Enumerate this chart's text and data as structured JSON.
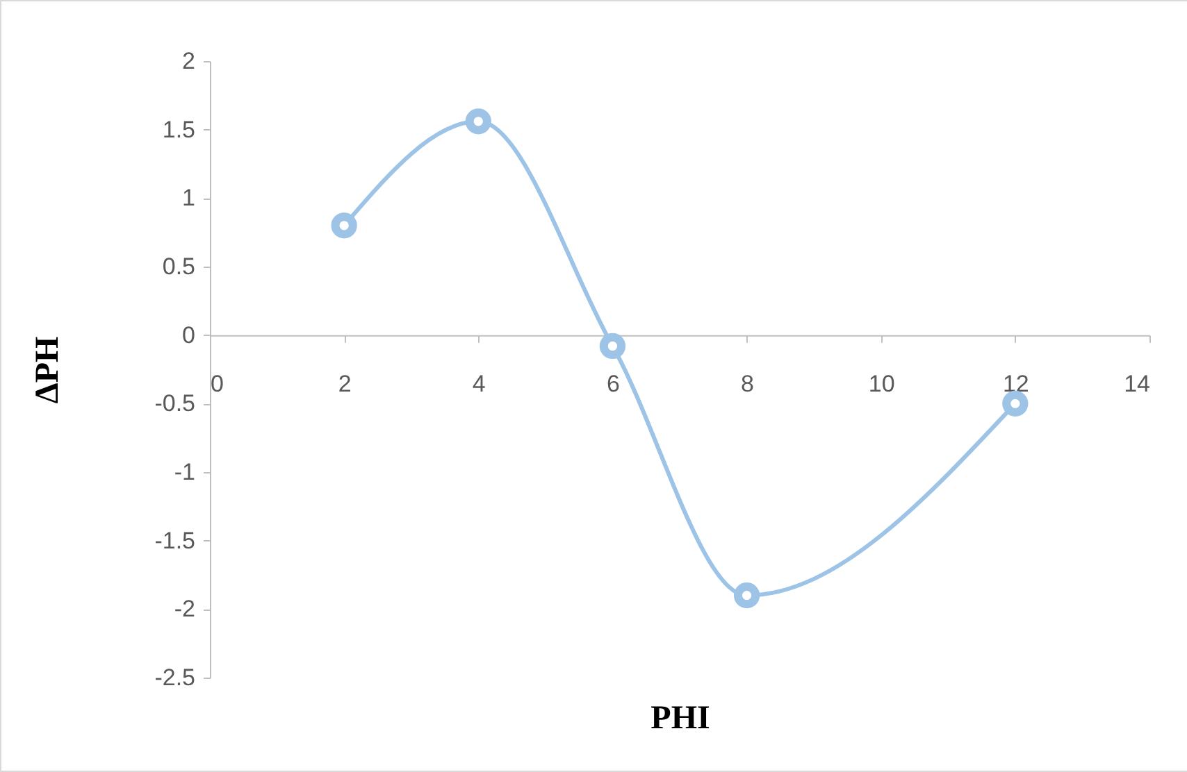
{
  "chart_data": {
    "type": "line",
    "xlabel": "PHI",
    "ylabel": "ΔPH",
    "x": [
      2,
      4,
      6,
      8,
      12
    ],
    "series": [
      {
        "color": "#9dc3e6",
        "values": [
          0.8,
          1.56,
          -0.08,
          -1.9,
          -0.5
        ]
      }
    ],
    "xlim": [
      0,
      14
    ],
    "xticks": [
      0,
      2,
      4,
      6,
      8,
      10,
      12,
      14
    ],
    "ylim": [
      -2.5,
      2
    ],
    "yticks": [
      -2.5,
      -2,
      -1.5,
      -1,
      -0.5,
      0,
      0.5,
      1,
      1.5,
      2
    ],
    "grid": false,
    "marker": "circle",
    "line_style": "solid"
  }
}
